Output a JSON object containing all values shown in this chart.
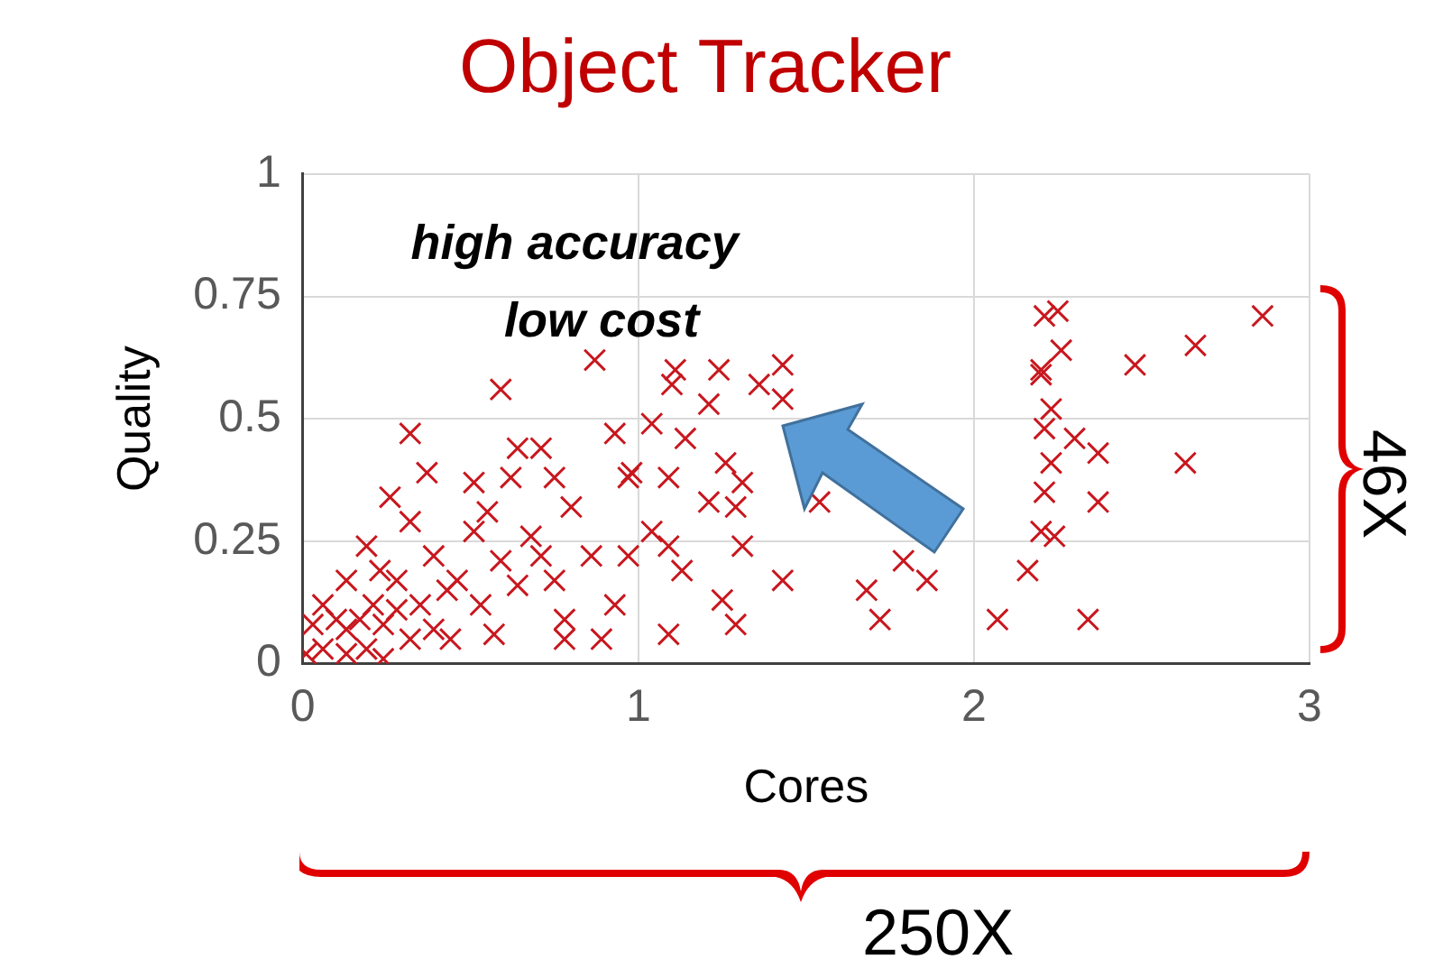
{
  "chart_data": {
    "type": "scatter",
    "title": "Object Tracker",
    "xlabel": "Cores",
    "ylabel": "Quality",
    "xlim": [
      0,
      3
    ],
    "xticks": [
      0,
      1,
      2,
      3
    ],
    "ylim": [
      0,
      1
    ],
    "yticks": [
      0,
      0.25,
      0.5,
      0.75,
      1
    ],
    "grid": true,
    "legend": false,
    "marker": "cross",
    "annotations": [
      "high accuracy",
      "low cost",
      "46X",
      "250X"
    ],
    "series": [
      {
        "color": "#c8171e",
        "x": [
          2.21,
          2.25,
          2.26,
          2.2,
          2.2,
          2.48,
          2.66,
          2.86,
          2.23,
          2.21,
          2.3,
          2.37,
          2.63,
          2.23,
          2.21,
          2.37,
          2.2,
          2.24,
          2.16,
          2.07,
          2.34,
          1.11,
          1.1,
          1.24,
          1.36,
          1.43,
          1.43,
          1.21,
          1.04,
          1.14,
          0.98,
          1.09,
          1.26,
          1.31,
          1.21,
          1.29,
          1.04,
          1.09,
          1.31,
          1.13,
          1.43,
          1.25,
          1.29,
          1.09,
          1.68,
          1.72,
          1.79,
          1.86,
          1.54,
          0.87,
          0.59,
          0.32,
          0.64,
          0.71,
          0.93,
          0.37,
          0.51,
          0.75,
          0.26,
          0.97,
          0.32,
          0.55,
          0.8,
          0.86,
          0.51,
          0.68,
          0.19,
          0.39,
          0.59,
          0.71,
          0.97,
          0.13,
          0.28,
          0.46,
          0.64,
          0.06,
          0.21,
          0.35,
          0.53,
          0.78,
          0.93,
          0.03,
          0.13,
          0.24,
          0.39,
          0.57,
          0.78,
          0.06,
          0.19,
          0.32,
          0.44,
          0.89,
          0.01,
          0.13,
          0.24,
          0.1,
          0.17,
          0.28,
          0.43,
          0.75,
          0.23,
          0.62
        ],
        "values": [
          0.71,
          0.72,
          0.64,
          0.6,
          0.59,
          0.61,
          0.65,
          0.71,
          0.52,
          0.48,
          0.46,
          0.43,
          0.41,
          0.41,
          0.35,
          0.33,
          0.27,
          0.26,
          0.19,
          0.09,
          0.09,
          0.6,
          0.57,
          0.6,
          0.57,
          0.61,
          0.54,
          0.53,
          0.49,
          0.46,
          0.39,
          0.38,
          0.41,
          0.37,
          0.33,
          0.32,
          0.27,
          0.24,
          0.24,
          0.19,
          0.17,
          0.13,
          0.08,
          0.06,
          0.15,
          0.09,
          0.21,
          0.17,
          0.33,
          0.62,
          0.56,
          0.47,
          0.44,
          0.44,
          0.47,
          0.39,
          0.37,
          0.38,
          0.34,
          0.38,
          0.29,
          0.31,
          0.32,
          0.22,
          0.27,
          0.26,
          0.24,
          0.22,
          0.21,
          0.22,
          0.22,
          0.17,
          0.17,
          0.17,
          0.16,
          0.12,
          0.12,
          0.12,
          0.12,
          0.09,
          0.12,
          0.08,
          0.07,
          0.08,
          0.07,
          0.06,
          0.05,
          0.03,
          0.03,
          0.05,
          0.05,
          0.05,
          0.02,
          0.02,
          0.01,
          0.09,
          0.09,
          0.11,
          0.15,
          0.17,
          0.19,
          0.38
        ]
      }
    ]
  }
}
